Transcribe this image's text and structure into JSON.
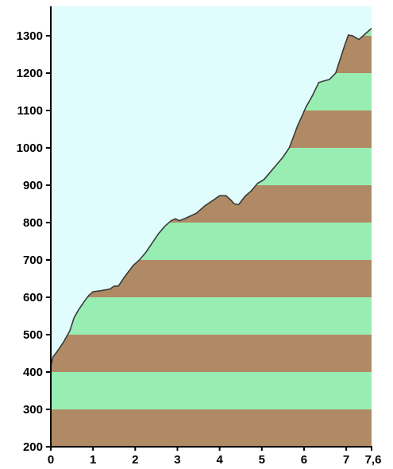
{
  "chart_data": {
    "type": "area",
    "title": "",
    "xlabel": "",
    "ylabel": "",
    "xlim": [
      0,
      7.6
    ],
    "ylim": [
      200,
      1350
    ],
    "x_ticks": [
      {
        "value": 0,
        "label": "0"
      },
      {
        "value": 1,
        "label": "1"
      },
      {
        "value": 2,
        "label": "2"
      },
      {
        "value": 3,
        "label": "3"
      },
      {
        "value": 4,
        "label": "4"
      },
      {
        "value": 5,
        "label": "5"
      },
      {
        "value": 6,
        "label": "6"
      },
      {
        "value": 7,
        "label": "7"
      },
      {
        "value": 7.6,
        "label": "7,6"
      }
    ],
    "y_ticks": [
      {
        "value": 200,
        "label": "200"
      },
      {
        "value": 300,
        "label": "300"
      },
      {
        "value": 400,
        "label": "400"
      },
      {
        "value": 500,
        "label": "500"
      },
      {
        "value": 600,
        "label": "600"
      },
      {
        "value": 700,
        "label": "700"
      },
      {
        "value": 800,
        "label": "800"
      },
      {
        "value": 900,
        "label": "900"
      },
      {
        "value": 1000,
        "label": "1000"
      },
      {
        "value": 1100,
        "label": "1100"
      },
      {
        "value": 1200,
        "label": "1200"
      },
      {
        "value": 1300,
        "label": "1300"
      }
    ],
    "grid": false,
    "band_step": 100,
    "colors": {
      "sky": "#e0fcfc",
      "band_brown": "#b08a64",
      "band_green": "#98eeb2",
      "profile_line": "#3a3a3a",
      "axis": "#000000"
    },
    "x": [
      0,
      0.05,
      0.15,
      0.3,
      0.45,
      0.55,
      0.65,
      0.8,
      0.9,
      1.0,
      1.2,
      1.4,
      1.5,
      1.6,
      1.75,
      1.85,
      1.95,
      2.1,
      2.25,
      2.4,
      2.55,
      2.7,
      2.85,
      2.95,
      3.05,
      3.2,
      3.45,
      3.65,
      3.85,
      4.0,
      4.15,
      4.25,
      4.35,
      4.45,
      4.6,
      4.75,
      4.9,
      5.05,
      5.2,
      5.35,
      5.5,
      5.65,
      5.75,
      5.85,
      5.95,
      6.05,
      6.2,
      6.35,
      6.5,
      6.6,
      6.75,
      6.85,
      6.95,
      7.05,
      7.15,
      7.3,
      7.45,
      7.6
    ],
    "values": [
      415,
      440,
      455,
      480,
      510,
      545,
      565,
      590,
      605,
      615,
      618,
      622,
      630,
      630,
      655,
      670,
      685,
      700,
      720,
      745,
      770,
      790,
      805,
      810,
      805,
      812,
      825,
      845,
      860,
      872,
      872,
      862,
      850,
      848,
      870,
      885,
      905,
      915,
      935,
      955,
      975,
      1000,
      1030,
      1060,
      1085,
      1110,
      1140,
      1175,
      1180,
      1183,
      1200,
      1235,
      1270,
      1302,
      1300,
      1290,
      1305,
      1320
    ]
  }
}
